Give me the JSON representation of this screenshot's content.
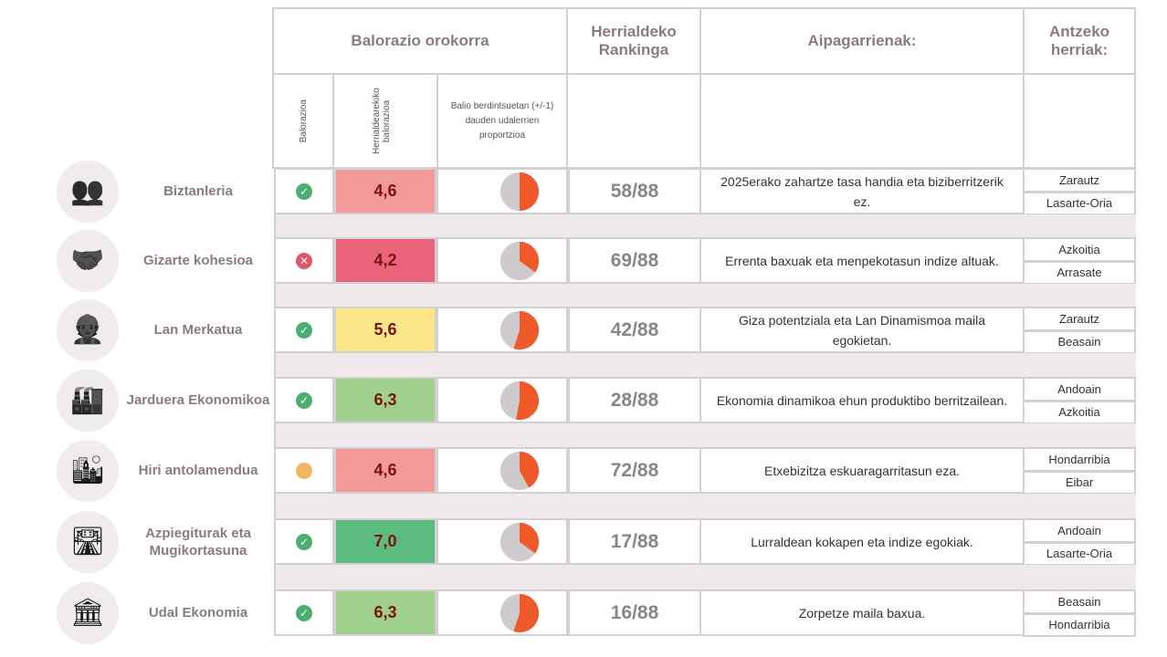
{
  "header": {
    "overall": "Balorazio orokorra",
    "ranking": "Herrialdeko Rankinga",
    "highlights": "Aipagarrienak:",
    "similar": "Antzeko herriak:"
  },
  "subheader": {
    "rating": "Balorazioa",
    "regional_rating": "Herrialdearekiko balorazioa",
    "proportion": "Balio berdintsuetan (+/-1) dauden udalerrien proportzioa"
  },
  "colors": {
    "pie_fill": "#f05a2a",
    "pie_bg": "#cfcacd"
  },
  "rows": [
    {
      "name": "Biztanleria",
      "icon": "people-icon",
      "status": "check",
      "value": "4,6",
      "color": "#f2999a",
      "pie": 0.5,
      "rank": "58/88",
      "note": "2025erako zahartze tasa handia eta biziberritzerik ez.",
      "similar": [
        "Zarautz",
        "Lasarte-Oria"
      ]
    },
    {
      "name": "Gizarte kohesioa",
      "icon": "handshake-icon",
      "status": "cross",
      "value": "4,2",
      "color": "#e9647a",
      "pie": 0.35,
      "rank": "69/88",
      "note": "Errenta baxuak eta menpekotasun indize altuak.",
      "similar": [
        "Azkoitia",
        "Arrasate"
      ]
    },
    {
      "name": "Lan Merkatua",
      "icon": "worker-icon",
      "status": "check",
      "value": "5,6",
      "color": "#fbe68a",
      "pie": 0.55,
      "rank": "42/88",
      "note": "Giza potentziala eta Lan Dinamismoa maila egokietan.",
      "similar": [
        "Zarautz",
        "Beasain"
      ]
    },
    {
      "name": "Jarduera Ekonomikoa",
      "icon": "factory-icon",
      "status": "check",
      "value": "6,3",
      "color": "#9fd08e",
      "pie": 0.53,
      "rank": "28/88",
      "note": "Ekonomia dinamikoa ehun produktibo berritzailean.",
      "similar": [
        "Andoain",
        "Azkoitia"
      ]
    },
    {
      "name": "Hiri antolamendua",
      "icon": "city-icon",
      "status": "warn",
      "value": "4,6",
      "color": "#f2999a",
      "pie": 0.42,
      "rank": "72/88",
      "note": "Etxebizitza eskuaragarritasun eza.",
      "similar": [
        "Hondarribia",
        "Eibar"
      ]
    },
    {
      "name": "Azpiegiturak eta Mugikortasuna",
      "icon": "road-icon",
      "status": "check",
      "value": "7,0",
      "color": "#5cbb7e",
      "pie": 0.35,
      "rank": "17/88",
      "note": "Lurraldean kokapen eta indize egokiak.",
      "similar": [
        "Andoain",
        "Lasarte-Oria"
      ]
    },
    {
      "name": "Udal Ekonomia",
      "icon": "town-hall-icon",
      "status": "check",
      "value": "6,3",
      "color": "#9fd08e",
      "pie": 0.55,
      "rank": "16/88",
      "note": "Zorpetze maila baxua.",
      "similar": [
        "Beasain",
        "Hondarribia"
      ]
    }
  ]
}
